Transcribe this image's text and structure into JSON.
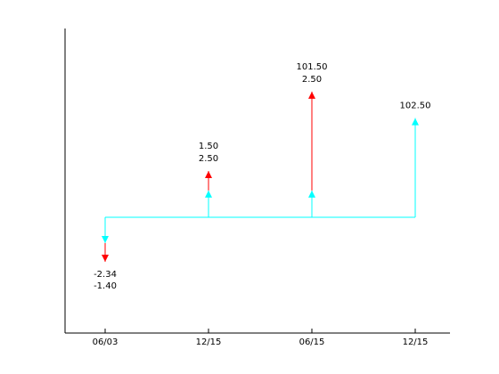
{
  "chart_data": {
    "type": "cashflow",
    "categories": [
      "06/03",
      "12/15",
      "06/15",
      "12/15"
    ],
    "series": [
      {
        "color": "#00ffff",
        "values": [
          -2.34,
          2.5,
          2.5,
          102.5
        ],
        "value_labels": [
          "-2.34",
          "2.50",
          "2.50",
          "102.50"
        ]
      },
      {
        "color": "#ff0000",
        "values": [
          -1.4,
          1.5,
          101.5,
          null
        ],
        "value_labels": [
          "-1.40",
          "1.50",
          "101.50",
          null
        ]
      }
    ]
  }
}
